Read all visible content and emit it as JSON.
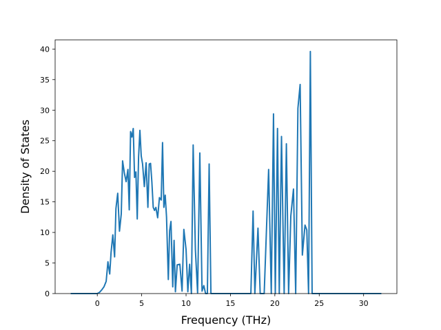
{
  "chart_data": {
    "type": "line",
    "title": "",
    "xlabel": "Frequency (THz)",
    "ylabel": "Density of States",
    "xlim": [
      -4.75,
      33.75
    ],
    "ylim": [
      0,
      41.5
    ],
    "xticks": [
      0,
      5,
      10,
      15,
      20,
      25,
      30
    ],
    "yticks": [
      0,
      5,
      10,
      15,
      20,
      25,
      30,
      35,
      40
    ],
    "grid": false,
    "legend": "none",
    "series": [
      {
        "color": "#1f77b4",
        "x": [
          -3,
          0,
          0.25,
          0.5,
          0.75,
          1.0,
          1.2,
          1.4,
          1.55,
          1.75,
          1.95,
          2.1,
          2.3,
          2.5,
          2.7,
          2.85,
          3.05,
          3.25,
          3.45,
          3.6,
          3.75,
          3.9,
          4.05,
          4.2,
          4.35,
          4.5,
          4.65,
          4.8,
          4.95,
          5.1,
          5.3,
          5.5,
          5.7,
          5.85,
          6.0,
          6.15,
          6.3,
          6.45,
          6.6,
          6.8,
          7.0,
          7.2,
          7.35,
          7.5,
          7.65,
          7.8,
          8.0,
          8.15,
          8.3,
          8.5,
          8.65,
          8.8,
          9.0,
          9.3,
          9.55,
          9.75,
          10.0,
          10.2,
          10.4,
          10.6,
          10.8,
          11.05,
          11.3,
          11.55,
          11.8,
          12.0,
          12.2,
          12.4,
          12.6,
          12.8,
          13.0,
          13.2,
          13.35,
          13.55,
          13.75,
          14.0,
          14.4,
          14.6,
          14.75,
          17.3,
          17.55,
          17.75,
          18.1,
          18.35,
          18.55,
          18.8,
          19.3,
          19.6,
          19.85,
          20.05,
          20.3,
          20.5,
          20.75,
          21.05,
          21.3,
          21.55,
          21.8,
          22.1,
          22.35,
          22.6,
          22.85,
          23.1,
          23.4,
          23.6,
          23.8,
          24.0,
          24.2,
          24.4,
          24.6,
          24.75,
          24.95,
          25.15,
          25.4,
          32
        ]
      }
    ],
    "values": [
      0,
      0,
      0.2,
      0.6,
      1.1,
      2,
      5.2,
      3.2,
      6.7,
      9.6,
      6,
      13.9,
      16.4,
      10.2,
      13,
      21.7,
      19.7,
      18.3,
      20.3,
      13.7,
      26.5,
      25.6,
      27,
      19,
      19.9,
      12.2,
      22.3,
      26.7,
      22.5,
      21.2,
      17.5,
      21.4,
      14.1,
      21.2,
      21.3,
      18.2,
      14.1,
      13.6,
      14.1,
      12.4,
      15.7,
      15.3,
      24.7,
      14.1,
      16.1,
      12.5,
      2.3,
      10.3,
      11.8,
      1.1,
      8.7,
      0.3,
      4.7,
      4.8,
      0.4,
      10.5,
      7.2,
      0.3,
      4.8,
      0,
      24.3,
      7.2,
      0.1,
      23,
      0.4,
      1.3,
      0,
      0,
      21.2,
      0,
      0,
      0,
      0,
      0,
      0,
      0,
      0,
      0,
      0,
      0,
      13.5,
      0,
      10.7,
      0,
      0,
      0,
      20.3,
      0,
      29.4,
      0,
      27,
      0,
      25.7,
      0,
      24.5,
      0,
      12.7,
      17.1,
      0,
      30.3,
      34.2,
      6.3,
      11.2,
      10.4,
      0,
      39.6,
      0,
      0,
      0,
      0,
      0,
      0,
      0,
      0
    ]
  }
}
